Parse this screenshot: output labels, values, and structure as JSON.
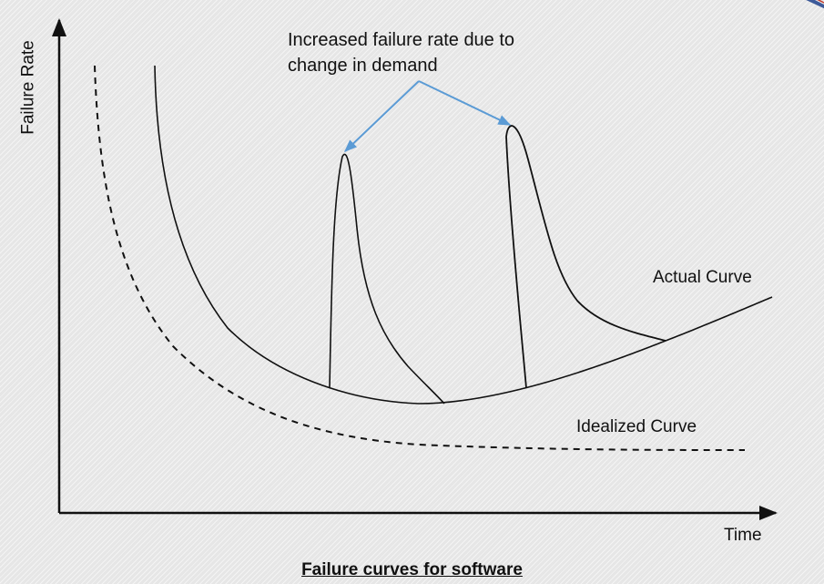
{
  "annotation": {
    "line1": "Increased failure rate due to",
    "line2": "change in demand"
  },
  "labels": {
    "y_axis": "Failure Rate",
    "x_axis": "Time",
    "actual_curve": "Actual Curve",
    "idealized_curve": "Idealized Curve"
  },
  "caption": "Failure curves for software",
  "colors": {
    "curve": "#111111",
    "arrow": "#5b9bd5",
    "background": "#e6e6e6"
  }
}
